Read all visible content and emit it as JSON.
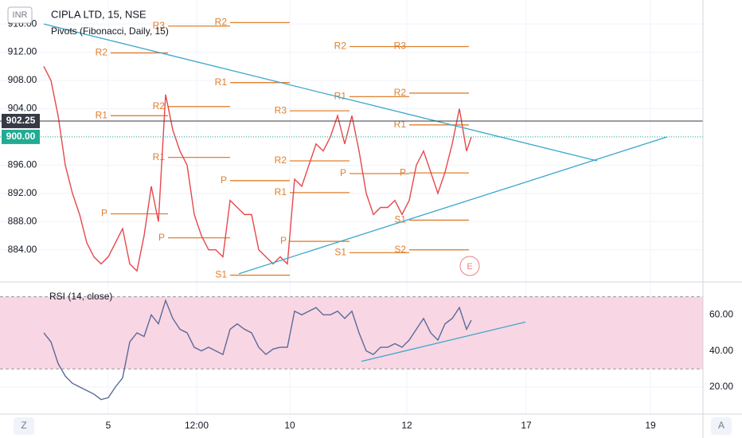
{
  "chart_data": {
    "type": "line",
    "title": "CIPLA LTD, 15, NSE",
    "subtitle": "Pivots (Fibonacci, Daily, 15)",
    "currency": "INR",
    "rsi_label": "RSI (14, close)",
    "event_marker": "E",
    "corner_buttons": [
      "Z",
      "A"
    ],
    "x": [
      0,
      3,
      6,
      9,
      12,
      15,
      18,
      21,
      24,
      27,
      30,
      33,
      36,
      39,
      42,
      45,
      48,
      51,
      54,
      57,
      60,
      63,
      66,
      69,
      72,
      75,
      78,
      81,
      84,
      87,
      90,
      93,
      96,
      99,
      102,
      105,
      108,
      111,
      114,
      117,
      120,
      123,
      126,
      129,
      132,
      135,
      138,
      141,
      144,
      147,
      150,
      153,
      156,
      159,
      162,
      165,
      168,
      171,
      174,
      177,
      179
    ],
    "series": [
      {
        "name": "CIPLA",
        "color": "#e8474b",
        "values": [
          910,
          908,
          903,
          896,
          892,
          889,
          885,
          883,
          882,
          883,
          885,
          887,
          882,
          881,
          886,
          893,
          888,
          906,
          901,
          898,
          896,
          889,
          886,
          884,
          884,
          883,
          891,
          890,
          889,
          889,
          884,
          883,
          882,
          883,
          882,
          894,
          893,
          896,
          899,
          898,
          900,
          903,
          899,
          903,
          898,
          892,
          889,
          890,
          890,
          891,
          889,
          891,
          896,
          898,
          895,
          892,
          895,
          899,
          904,
          898,
          900
        ]
      },
      {
        "name": "RSI",
        "color": "#5b6b9a",
        "axis": "y2",
        "values": [
          50,
          45,
          33,
          26,
          22,
          20,
          18,
          16,
          13,
          14,
          20,
          25,
          45,
          50,
          48,
          60,
          55,
          68,
          58,
          52,
          50,
          42,
          40,
          42,
          40,
          38,
          52,
          55,
          52,
          50,
          42,
          38,
          41,
          42,
          42,
          62,
          60,
          62,
          64,
          60,
          60,
          62,
          58,
          62,
          50,
          40,
          38,
          42,
          42,
          44,
          42,
          46,
          52,
          58,
          50,
          46,
          55,
          58,
          64,
          52,
          57
        ]
      }
    ],
    "xlim": [
      0,
      276
    ],
    "xticks": [
      {
        "value": 27,
        "label": "5"
      },
      {
        "value": 64,
        "label": "12:00"
      },
      {
        "value": 103,
        "label": "10"
      },
      {
        "value": 152,
        "label": "12"
      },
      {
        "value": 202,
        "label": "17"
      },
      {
        "value": 254,
        "label": "19"
      }
    ],
    "ylim": [
      879.9,
      919.4
    ],
    "yticks": [
      {
        "value": 884,
        "label": "884.00"
      },
      {
        "value": 888,
        "label": "888.00"
      },
      {
        "value": 892,
        "label": "892.00"
      },
      {
        "value": 896,
        "label": "896.00"
      },
      {
        "value": 900,
        "label": "900.00"
      },
      {
        "value": 904,
        "label": "904.00"
      },
      {
        "value": 908,
        "label": "908.00"
      },
      {
        "value": 912,
        "label": "912.00"
      },
      {
        "value": 916,
        "label": "916.00"
      }
    ],
    "y2lim": [
      5.8,
      75.6
    ],
    "y2ticks": [
      {
        "value": 20,
        "label": "20.00"
      },
      {
        "value": 40,
        "label": "40.00"
      },
      {
        "value": 60,
        "label": "60.00"
      }
    ],
    "rsi_band": [
      30,
      70
    ],
    "grid": true,
    "price_lines": [
      {
        "value": 902.25,
        "label": "902.25",
        "color": "#363a45"
      },
      {
        "value": 900,
        "label": "900.00",
        "color": "#22ab94"
      }
    ],
    "pivot_color": "#e0802f",
    "pivots": [
      {
        "label": "R2",
        "value": 911.9,
        "x": [
          28,
          52
        ]
      },
      {
        "label": "R1",
        "value": 903.0,
        "x": [
          28,
          52
        ]
      },
      {
        "label": "P",
        "value": 889.1,
        "x": [
          28,
          52
        ]
      },
      {
        "label": "R3",
        "value": 915.7,
        "x": [
          52,
          78
        ]
      },
      {
        "label": "R2",
        "value": 904.3,
        "x": [
          52,
          78
        ]
      },
      {
        "label": "R1",
        "value": 897.1,
        "x": [
          52,
          78
        ]
      },
      {
        "label": "P",
        "value": 885.7,
        "x": [
          52,
          78
        ]
      },
      {
        "label": "R2",
        "value": 916.2,
        "x": [
          78,
          103
        ]
      },
      {
        "label": "R1",
        "value": 907.7,
        "x": [
          78,
          103
        ]
      },
      {
        "label": "P",
        "value": 893.8,
        "x": [
          78,
          103
        ]
      },
      {
        "label": "S1",
        "value": 880.4,
        "x": [
          78,
          103
        ]
      },
      {
        "label": "R3",
        "value": 903.7,
        "x": [
          103,
          128
        ]
      },
      {
        "label": "R2",
        "value": 896.6,
        "x": [
          103,
          128
        ]
      },
      {
        "label": "R1",
        "value": 892.1,
        "x": [
          103,
          128
        ]
      },
      {
        "label": "P",
        "value": 885.2,
        "x": [
          103,
          128
        ]
      },
      {
        "label": "R2",
        "value": 912.8,
        "x": [
          128,
          153
        ]
      },
      {
        "label": "R1",
        "value": 905.7,
        "x": [
          128,
          153
        ]
      },
      {
        "label": "P",
        "value": 894.8,
        "x": [
          128,
          153
        ]
      },
      {
        "label": "S1",
        "value": 883.6,
        "x": [
          128,
          153
        ]
      },
      {
        "label": "R3",
        "value": 912.8,
        "x": [
          153,
          178
        ]
      },
      {
        "label": "R2",
        "value": 906.2,
        "x": [
          153,
          178
        ]
      },
      {
        "label": "R1",
        "value": 901.7,
        "x": [
          153,
          178
        ]
      },
      {
        "label": "P",
        "value": 894.9,
        "x": [
          153,
          178
        ]
      },
      {
        "label": "S1",
        "value": 888.2,
        "x": [
          153,
          178
        ]
      },
      {
        "label": "S2",
        "value": 884.0,
        "x": [
          153,
          178
        ]
      }
    ],
    "trendline_color": "#3ba7cc",
    "trendlines": [
      {
        "x": [
          0,
          231.7
        ],
        "y": [
          916,
          896.6
        ]
      },
      {
        "x": [
          81.7,
          261
        ],
        "y": [
          880.6,
          900
        ]
      },
      {
        "x": [
          133,
          201.7
        ],
        "y": [
          34.2,
          56
        ],
        "axis": "y2"
      }
    ]
  }
}
